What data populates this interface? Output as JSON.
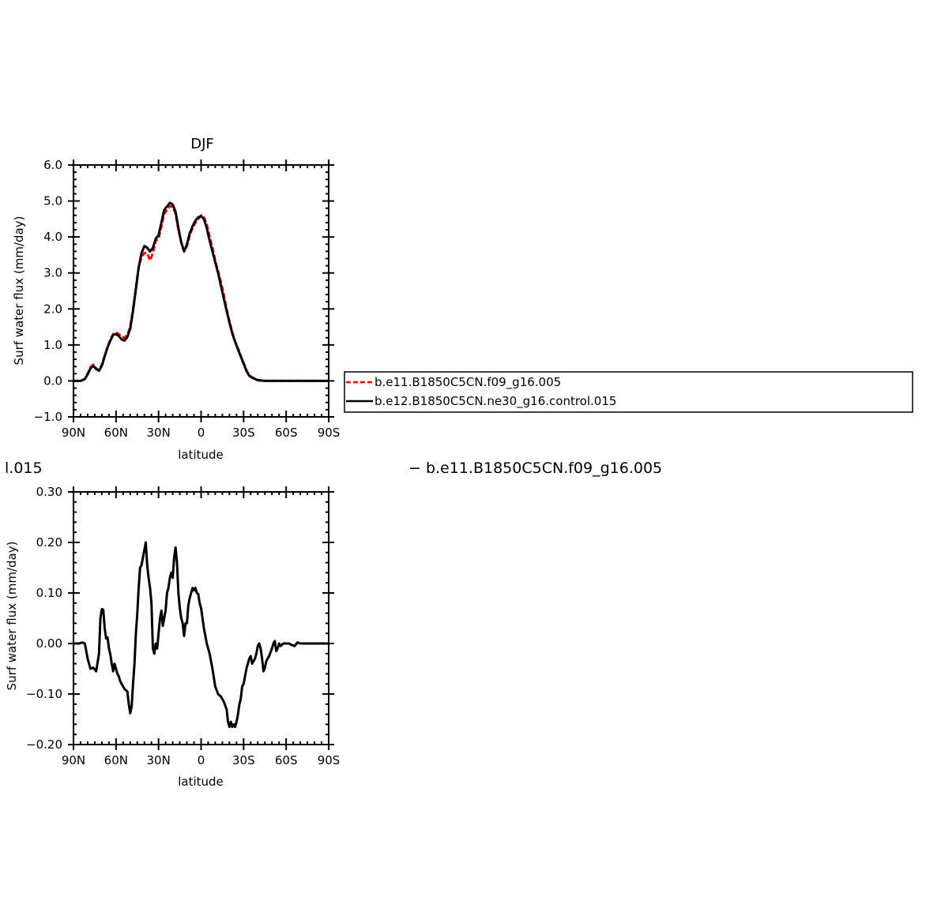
{
  "chart_data": [
    {
      "type": "line",
      "title": "DJF",
      "xlabel": "latitude",
      "ylabel": "Surf  water flux (mm/day)",
      "xlim": [
        90,
        -90
      ],
      "ylim": [
        -1.0,
        6.0
      ],
      "xticks": [
        90,
        60,
        30,
        0,
        -30,
        -60,
        -90
      ],
      "xtick_labels": [
        "90N",
        "60N",
        "30N",
        "0",
        "30S",
        "60S",
        "90S"
      ],
      "yticks": [
        -1.0,
        0.0,
        1.0,
        2.0,
        3.0,
        4.0,
        5.0,
        6.0
      ],
      "ytick_labels": [
        "−1.0",
        "0.0",
        "1.0",
        "2.0",
        "3.0",
        "4.0",
        "5.0",
        "6.0"
      ],
      "legend_position": "right",
      "series": [
        {
          "name": "b.e11.B1850C5CN.f09_g16.005",
          "color": "#ff0000",
          "style": "dashed",
          "points": [
            [
              90,
              0.0
            ],
            [
              85,
              0.0
            ],
            [
              82,
              0.05
            ],
            [
              80,
              0.2
            ],
            [
              78,
              0.38
            ],
            [
              76,
              0.45
            ],
            [
              74,
              0.35
            ],
            [
              72,
              0.3
            ],
            [
              70,
              0.45
            ],
            [
              68,
              0.7
            ],
            [
              66,
              0.95
            ],
            [
              64,
              1.15
            ],
            [
              62,
              1.3
            ],
            [
              60,
              1.35
            ],
            [
              58,
              1.3
            ],
            [
              56,
              1.22
            ],
            [
              54,
              1.2
            ],
            [
              52,
              1.28
            ],
            [
              50,
              1.5
            ],
            [
              48,
              2.0
            ],
            [
              46,
              2.6
            ],
            [
              44,
              3.15
            ],
            [
              42,
              3.45
            ],
            [
              40,
              3.55
            ],
            [
              38,
              3.55
            ],
            [
              36,
              3.35
            ],
            [
              34,
              3.55
            ],
            [
              32,
              3.9
            ],
            [
              30,
              3.95
            ],
            [
              28,
              4.3
            ],
            [
              26,
              4.65
            ],
            [
              24,
              4.75
            ],
            [
              22,
              4.85
            ],
            [
              20,
              4.85
            ],
            [
              18,
              4.65
            ],
            [
              16,
              4.2
            ],
            [
              14,
              3.85
            ],
            [
              12,
              3.6
            ],
            [
              10,
              3.75
            ],
            [
              8,
              4.05
            ],
            [
              6,
              4.25
            ],
            [
              4,
              4.4
            ],
            [
              2,
              4.5
            ],
            [
              0,
              4.6
            ],
            [
              -2,
              4.55
            ],
            [
              -4,
              4.35
            ],
            [
              -6,
              4.0
            ],
            [
              -8,
              3.7
            ],
            [
              -10,
              3.35
            ],
            [
              -12,
              3.05
            ],
            [
              -14,
              2.75
            ],
            [
              -16,
              2.4
            ],
            [
              -18,
              2.0
            ],
            [
              -20,
              1.65
            ],
            [
              -22,
              1.35
            ],
            [
              -24,
              1.1
            ],
            [
              -26,
              0.9
            ],
            [
              -28,
              0.7
            ],
            [
              -30,
              0.5
            ],
            [
              -32,
              0.3
            ],
            [
              -34,
              0.15
            ],
            [
              -36,
              0.1
            ],
            [
              -40,
              0.02
            ],
            [
              -45,
              0.0
            ],
            [
              -60,
              0.0
            ],
            [
              -90,
              0.0
            ]
          ]
        },
        {
          "name": "b.e12.B1850C5CN.ne30_g16.control.015",
          "color": "#000000",
          "style": "solid",
          "points": [
            [
              90,
              0.0
            ],
            [
              85,
              0.0
            ],
            [
              82,
              0.05
            ],
            [
              80,
              0.18
            ],
            [
              78,
              0.35
            ],
            [
              76,
              0.42
            ],
            [
              74,
              0.33
            ],
            [
              72,
              0.28
            ],
            [
              70,
              0.42
            ],
            [
              68,
              0.68
            ],
            [
              66,
              0.93
            ],
            [
              64,
              1.12
            ],
            [
              62,
              1.28
            ],
            [
              60,
              1.3
            ],
            [
              58,
              1.25
            ],
            [
              56,
              1.15
            ],
            [
              54,
              1.12
            ],
            [
              52,
              1.22
            ],
            [
              50,
              1.45
            ],
            [
              48,
              1.95
            ],
            [
              46,
              2.55
            ],
            [
              44,
              3.15
            ],
            [
              42,
              3.55
            ],
            [
              40,
              3.75
            ],
            [
              38,
              3.7
            ],
            [
              36,
              3.6
            ],
            [
              34,
              3.7
            ],
            [
              32,
              3.95
            ],
            [
              30,
              4.05
            ],
            [
              28,
              4.4
            ],
            [
              26,
              4.75
            ],
            [
              24,
              4.85
            ],
            [
              22,
              4.95
            ],
            [
              20,
              4.9
            ],
            [
              18,
              4.7
            ],
            [
              16,
              4.25
            ],
            [
              14,
              3.85
            ],
            [
              12,
              3.6
            ],
            [
              10,
              3.8
            ],
            [
              8,
              4.1
            ],
            [
              6,
              4.3
            ],
            [
              4,
              4.45
            ],
            [
              2,
              4.55
            ],
            [
              0,
              4.58
            ],
            [
              -2,
              4.5
            ],
            [
              -4,
              4.25
            ],
            [
              -6,
              3.9
            ],
            [
              -8,
              3.6
            ],
            [
              -10,
              3.3
            ],
            [
              -12,
              3.0
            ],
            [
              -14,
              2.65
            ],
            [
              -16,
              2.3
            ],
            [
              -18,
              1.95
            ],
            [
              -20,
              1.62
            ],
            [
              -22,
              1.32
            ],
            [
              -24,
              1.08
            ],
            [
              -26,
              0.88
            ],
            [
              -28,
              0.68
            ],
            [
              -30,
              0.48
            ],
            [
              -32,
              0.28
            ],
            [
              -34,
              0.14
            ],
            [
              -36,
              0.09
            ],
            [
              -40,
              0.02
            ],
            [
              -45,
              0.0
            ],
            [
              -60,
              0.0
            ],
            [
              -90,
              0.0
            ]
          ]
        }
      ]
    },
    {
      "type": "line",
      "title_fragment": "l.015",
      "subtitle": "− b.e11.B1850C5CN.f09_g16.005",
      "xlabel": "latitude",
      "ylabel": "Surf  water flux (mm/day)",
      "xlim": [
        90,
        -90
      ],
      "ylim": [
        -0.2,
        0.3
      ],
      "xticks": [
        90,
        60,
        30,
        0,
        -30,
        -60,
        -90
      ],
      "xtick_labels": [
        "90N",
        "60N",
        "30N",
        "0",
        "30S",
        "60S",
        "90S"
      ],
      "yticks": [
        -0.2,
        -0.1,
        0.0,
        0.1,
        0.2,
        0.3
      ],
      "ytick_labels": [
        "−0.20",
        "−0.10",
        "0.00",
        "0.10",
        "0.20",
        "0.30"
      ],
      "series": [
        {
          "color": "#000000",
          "style": "solid",
          "points": [
            [
              90,
              0.0
            ],
            [
              86,
              0.0
            ],
            [
              84,
              0.002
            ],
            [
              82,
              0.0
            ],
            [
              80,
              -0.03
            ],
            [
              78,
              -0.05
            ],
            [
              76,
              -0.048
            ],
            [
              74,
              -0.055
            ],
            [
              72,
              -0.02
            ],
            [
              71,
              0.05
            ],
            [
              70,
              0.068
            ],
            [
              69,
              0.067
            ],
            [
              68,
              0.03
            ],
            [
              67,
              0.01
            ],
            [
              66,
              0.012
            ],
            [
              65,
              -0.01
            ],
            [
              64,
              -0.022
            ],
            [
              63,
              -0.04
            ],
            [
              62,
              -0.055
            ],
            [
              61,
              -0.04
            ],
            [
              60,
              -0.05
            ],
            [
              59,
              -0.06
            ],
            [
              58,
              -0.065
            ],
            [
              57,
              -0.075
            ],
            [
              56,
              -0.08
            ],
            [
              55,
              -0.085
            ],
            [
              54,
              -0.09
            ],
            [
              52,
              -0.095
            ],
            [
              51,
              -0.12
            ],
            [
              50,
              -0.138
            ],
            [
              49,
              -0.125
            ],
            [
              48,
              -0.08
            ],
            [
              47,
              -0.04
            ],
            [
              46,
              0.02
            ],
            [
              45,
              0.06
            ],
            [
              44,
              0.11
            ],
            [
              43,
              0.15
            ],
            [
              42,
              0.155
            ],
            [
              41,
              0.17
            ],
            [
              40,
              0.185
            ],
            [
              39,
              0.2
            ],
            [
              38,
              0.155
            ],
            [
              37,
              0.13
            ],
            [
              36,
              0.11
            ],
            [
              35,
              0.08
            ],
            [
              34,
              -0.01
            ],
            [
              33,
              -0.02
            ],
            [
              32,
              0.0
            ],
            [
              31,
              -0.01
            ],
            [
              30,
              0.02
            ],
            [
              29,
              0.05
            ],
            [
              28,
              0.065
            ],
            [
              27,
              0.035
            ],
            [
              26,
              0.05
            ],
            [
              25,
              0.065
            ],
            [
              24,
              0.1
            ],
            [
              23,
              0.11
            ],
            [
              22,
              0.13
            ],
            [
              21,
              0.14
            ],
            [
              20,
              0.13
            ],
            [
              19,
              0.17
            ],
            [
              18,
              0.19
            ],
            [
              17,
              0.16
            ],
            [
              16,
              0.1
            ],
            [
              15,
              0.07
            ],
            [
              14,
              0.05
            ],
            [
              13,
              0.04
            ],
            [
              12,
              0.015
            ],
            [
              11,
              0.04
            ],
            [
              10,
              0.04
            ],
            [
              9,
              0.075
            ],
            [
              8,
              0.09
            ],
            [
              7,
              0.1
            ],
            [
              6,
              0.11
            ],
            [
              5,
              0.105
            ],
            [
              4,
              0.11
            ],
            [
              3,
              0.1
            ],
            [
              2,
              0.098
            ],
            [
              1,
              0.08
            ],
            [
              0,
              0.07
            ],
            [
              -2,
              0.03
            ],
            [
              -4,
              0.0
            ],
            [
              -6,
              -0.02
            ],
            [
              -8,
              -0.05
            ],
            [
              -10,
              -0.085
            ],
            [
              -12,
              -0.1
            ],
            [
              -14,
              -0.105
            ],
            [
              -16,
              -0.115
            ],
            [
              -18,
              -0.13
            ],
            [
              -19,
              -0.155
            ],
            [
              -20,
              -0.165
            ],
            [
              -21,
              -0.155
            ],
            [
              -22,
              -0.165
            ],
            [
              -23,
              -0.16
            ],
            [
              -24,
              -0.165
            ],
            [
              -25,
              -0.155
            ],
            [
              -26,
              -0.14
            ],
            [
              -27,
              -0.12
            ],
            [
              -28,
              -0.11
            ],
            [
              -29,
              -0.085
            ],
            [
              -30,
              -0.08
            ],
            [
              -32,
              -0.05
            ],
            [
              -34,
              -0.03
            ],
            [
              -35,
              -0.025
            ],
            [
              -36,
              -0.04
            ],
            [
              -37,
              -0.035
            ],
            [
              -38,
              -0.03
            ],
            [
              -39,
              -0.02
            ],
            [
              -40,
              -0.005
            ],
            [
              -41,
              0.0
            ],
            [
              -42,
              -0.01
            ],
            [
              -43,
              -0.03
            ],
            [
              -44,
              -0.055
            ],
            [
              -45,
              -0.048
            ],
            [
              -46,
              -0.035
            ],
            [
              -48,
              -0.025
            ],
            [
              -50,
              -0.01
            ],
            [
              -51,
              0.0
            ],
            [
              -52,
              0.005
            ],
            [
              -53,
              -0.015
            ],
            [
              -54,
              -0.01
            ],
            [
              -55,
              0.0
            ],
            [
              -56,
              -0.005
            ],
            [
              -58,
              0.0
            ],
            [
              -60,
              0.0
            ],
            [
              -62,
              0.0
            ],
            [
              -64,
              -0.003
            ],
            [
              -66,
              -0.005
            ],
            [
              -68,
              0.002
            ],
            [
              -70,
              0.0
            ],
            [
              -90,
              0.0
            ]
          ]
        }
      ]
    }
  ]
}
